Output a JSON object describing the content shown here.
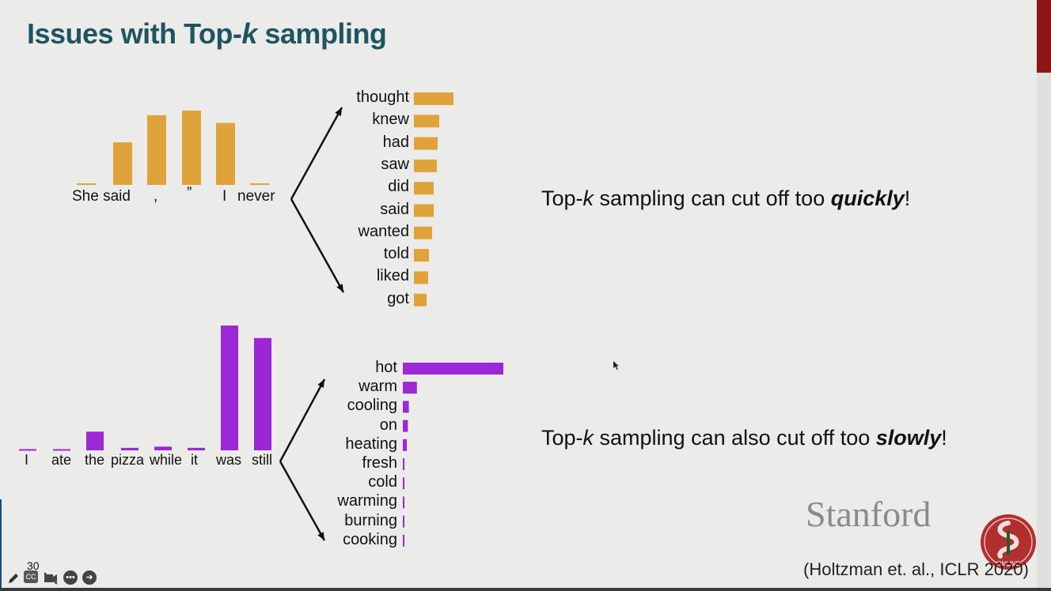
{
  "slide": {
    "title_prefix": "Issues with Top-",
    "title_k": "k",
    "title_suffix": " sampling",
    "statement1": {
      "prefix": "Top-",
      "k": "k",
      "middle": " sampling can cut off too ",
      "emph": "quickly",
      "end": "!"
    },
    "statement2": {
      "prefix": "Top-",
      "k": "k",
      "middle": " sampling can also cut off too ",
      "emph": "slowly",
      "end": "!"
    },
    "logo_text": "Stanford",
    "seal_text": "ONLINE",
    "citation": "(Holtzman et. al., ICLR  2020)",
    "slide_number": "30"
  },
  "colors": {
    "orange": "#e0a23a",
    "purple": "#9b27d6",
    "title": "#1f5560",
    "accent": "#8c1515"
  },
  "toolbar": {
    "icons": [
      "pencil-icon",
      "captions-icon",
      "video-off-icon",
      "more-icon",
      "next-icon"
    ],
    "cc_label": "CC"
  },
  "chart_data": [
    {
      "type": "bar",
      "name_ref": "context-1-attention",
      "categories": [
        "She",
        "said",
        ",",
        "”",
        "I",
        "never"
      ],
      "tokens": [
        "She said",
        ",",
        "”",
        "I",
        "never"
      ],
      "values": [
        0.02,
        0.55,
        0.9,
        0.96,
        0.8,
        0.02
      ],
      "color": "#e0a23a"
    },
    {
      "type": "bar",
      "name_ref": "next-token-1",
      "categories": [
        "thought",
        "knew",
        "had",
        "saw",
        "did",
        "said",
        "wanted",
        "told",
        "liked",
        "got"
      ],
      "values": [
        1.0,
        0.64,
        0.6,
        0.58,
        0.5,
        0.5,
        0.46,
        0.38,
        0.36,
        0.32
      ],
      "color": "#e0a23a"
    },
    {
      "type": "bar",
      "name_ref": "context-2-attention",
      "categories": [
        "I",
        "ate",
        "the",
        "pizza",
        "while",
        "it",
        "was",
        "still"
      ],
      "values": [
        0.01,
        0.01,
        0.15,
        0.02,
        0.03,
        0.02,
        1.0,
        0.9
      ],
      "color": "#9b27d6"
    },
    {
      "type": "bar",
      "name_ref": "next-token-2",
      "categories": [
        "hot",
        "warm",
        "cooling",
        "on",
        "heating",
        "fresh",
        "cold",
        "warming",
        "burning",
        "cooking"
      ],
      "values": [
        1.0,
        0.14,
        0.06,
        0.05,
        0.04,
        0.015,
        0.012,
        0.01,
        0.01,
        0.008
      ],
      "color": "#9b27d6"
    }
  ]
}
